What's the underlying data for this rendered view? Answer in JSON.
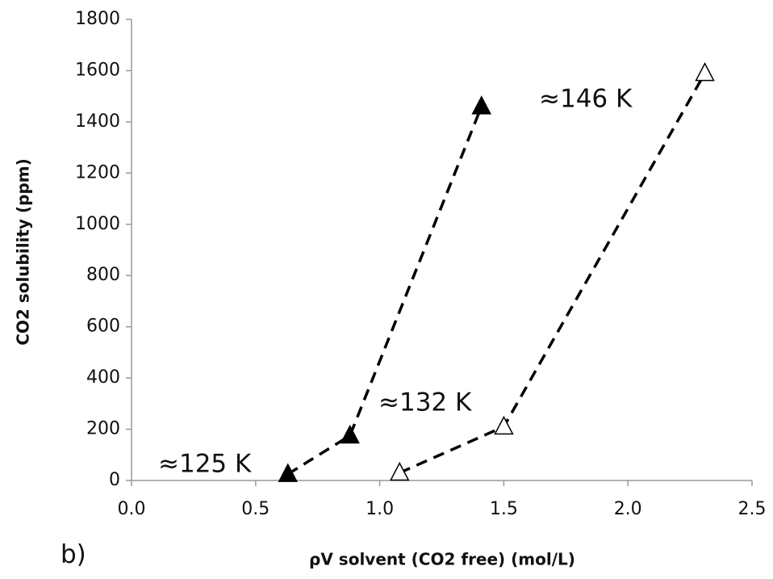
{
  "chart_data": {
    "type": "scatter",
    "xlabel": "ρV solvent  (CO2 free) (mol/L)",
    "ylabel": "CO2 solubility  (ppm)",
    "xlim": [
      0,
      2.5
    ],
    "xticks": [
      {
        "value": 0,
        "label": "0.0"
      },
      0.5,
      {
        "value": 1,
        "label": "1.0"
      },
      1.5,
      {
        "value": 2,
        "label": "2.0"
      },
      2.5
    ],
    "ylim": [
      0,
      1800
    ],
    "yticks": [
      0,
      200,
      400,
      600,
      800,
      1000,
      1200,
      1400,
      1600,
      1800
    ],
    "grid": false,
    "line_style": "dashed",
    "series": [
      {
        "color": "#000000",
        "fill": "#000000",
        "x": [
          0.63,
          0.88,
          1.41
        ],
        "values": [
          25,
          175,
          1460
        ]
      },
      {
        "color": "#000000",
        "fill": "#ffffff",
        "x": [
          1.08,
          1.5,
          2.31
        ],
        "values": [
          30,
          210,
          1590
        ]
      }
    ],
    "annotations": [
      "≈125 K",
      "≈132 K",
      "≈146 K",
      "b)"
    ]
  }
}
